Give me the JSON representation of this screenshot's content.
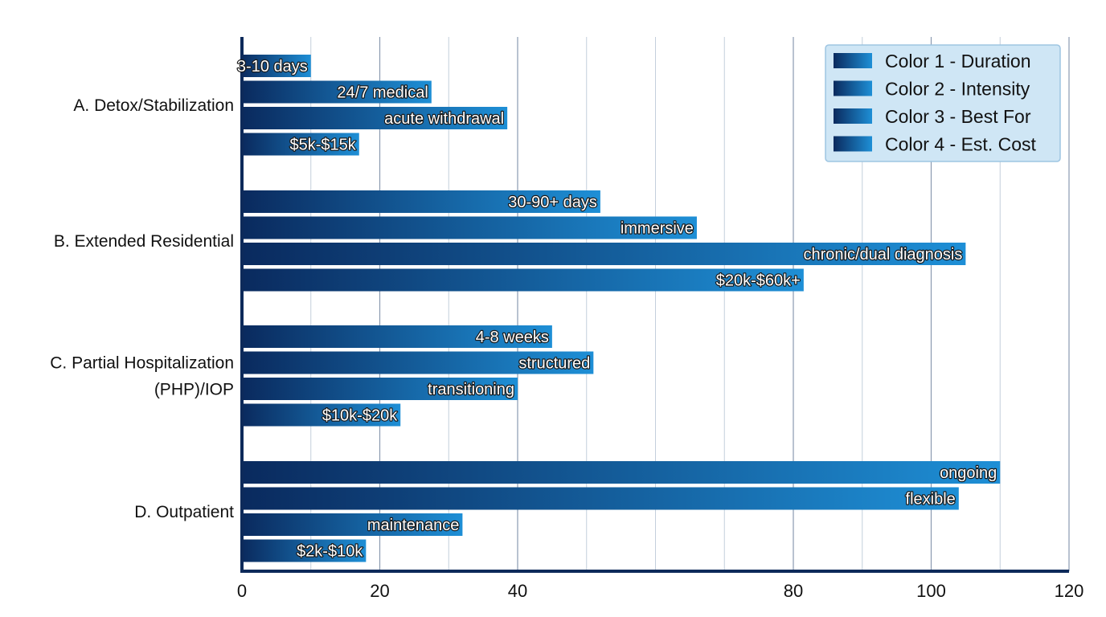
{
  "chart_data": {
    "type": "bar",
    "orientation": "horizontal",
    "categories": [
      [
        "A. Detox/Stabilization"
      ],
      [
        "B. Extended Residential"
      ],
      [
        "C. Partial Hospitalization",
        "(PHP)/IOP"
      ],
      [
        "D. Outpatient"
      ]
    ],
    "series": [
      {
        "name": "Color 1 - Duration",
        "values": [
          10,
          52,
          45,
          110
        ],
        "labels": [
          "3-10 days",
          "30-90+ days",
          "4-8 weeks",
          "ongoing"
        ]
      },
      {
        "name": "Color 2 - Intensity",
        "values": [
          27.5,
          66,
          51,
          104
        ],
        "labels": [
          "24/7 medical",
          "immersive",
          "structured",
          "flexible"
        ]
      },
      {
        "name": "Color 3 - Best For",
        "values": [
          38.5,
          105,
          40,
          32
        ],
        "labels": [
          "acute withdrawal",
          "chronic/dual diagnosis",
          "transitioning",
          "maintenance"
        ]
      },
      {
        "name": "Color 4 - Est. Cost",
        "values": [
          17,
          81.5,
          23,
          18
        ],
        "labels": [
          "$5k-$15k",
          "$20k-$60k+",
          "$10k-$20k",
          "$2k-$10k"
        ]
      }
    ],
    "x_ticks": [
      0,
      20,
      40,
      80,
      100,
      120
    ],
    "xlim": [
      0,
      120
    ],
    "minor_gridlines": [
      10,
      30,
      50,
      60,
      70,
      90,
      110
    ],
    "grid": true,
    "legend_position": "top-right",
    "colors": {
      "bar_start": "#0a2a5e",
      "bar_end": "#1e8fd6",
      "axis": "#0d2a5a",
      "grid_major": "#8a9ab0",
      "grid_minor": "#c4cfdc",
      "legend_bg": "#cfe6f5",
      "legend_border": "#9ec5e2"
    },
    "title": "",
    "xlabel": "",
    "ylabel": ""
  }
}
